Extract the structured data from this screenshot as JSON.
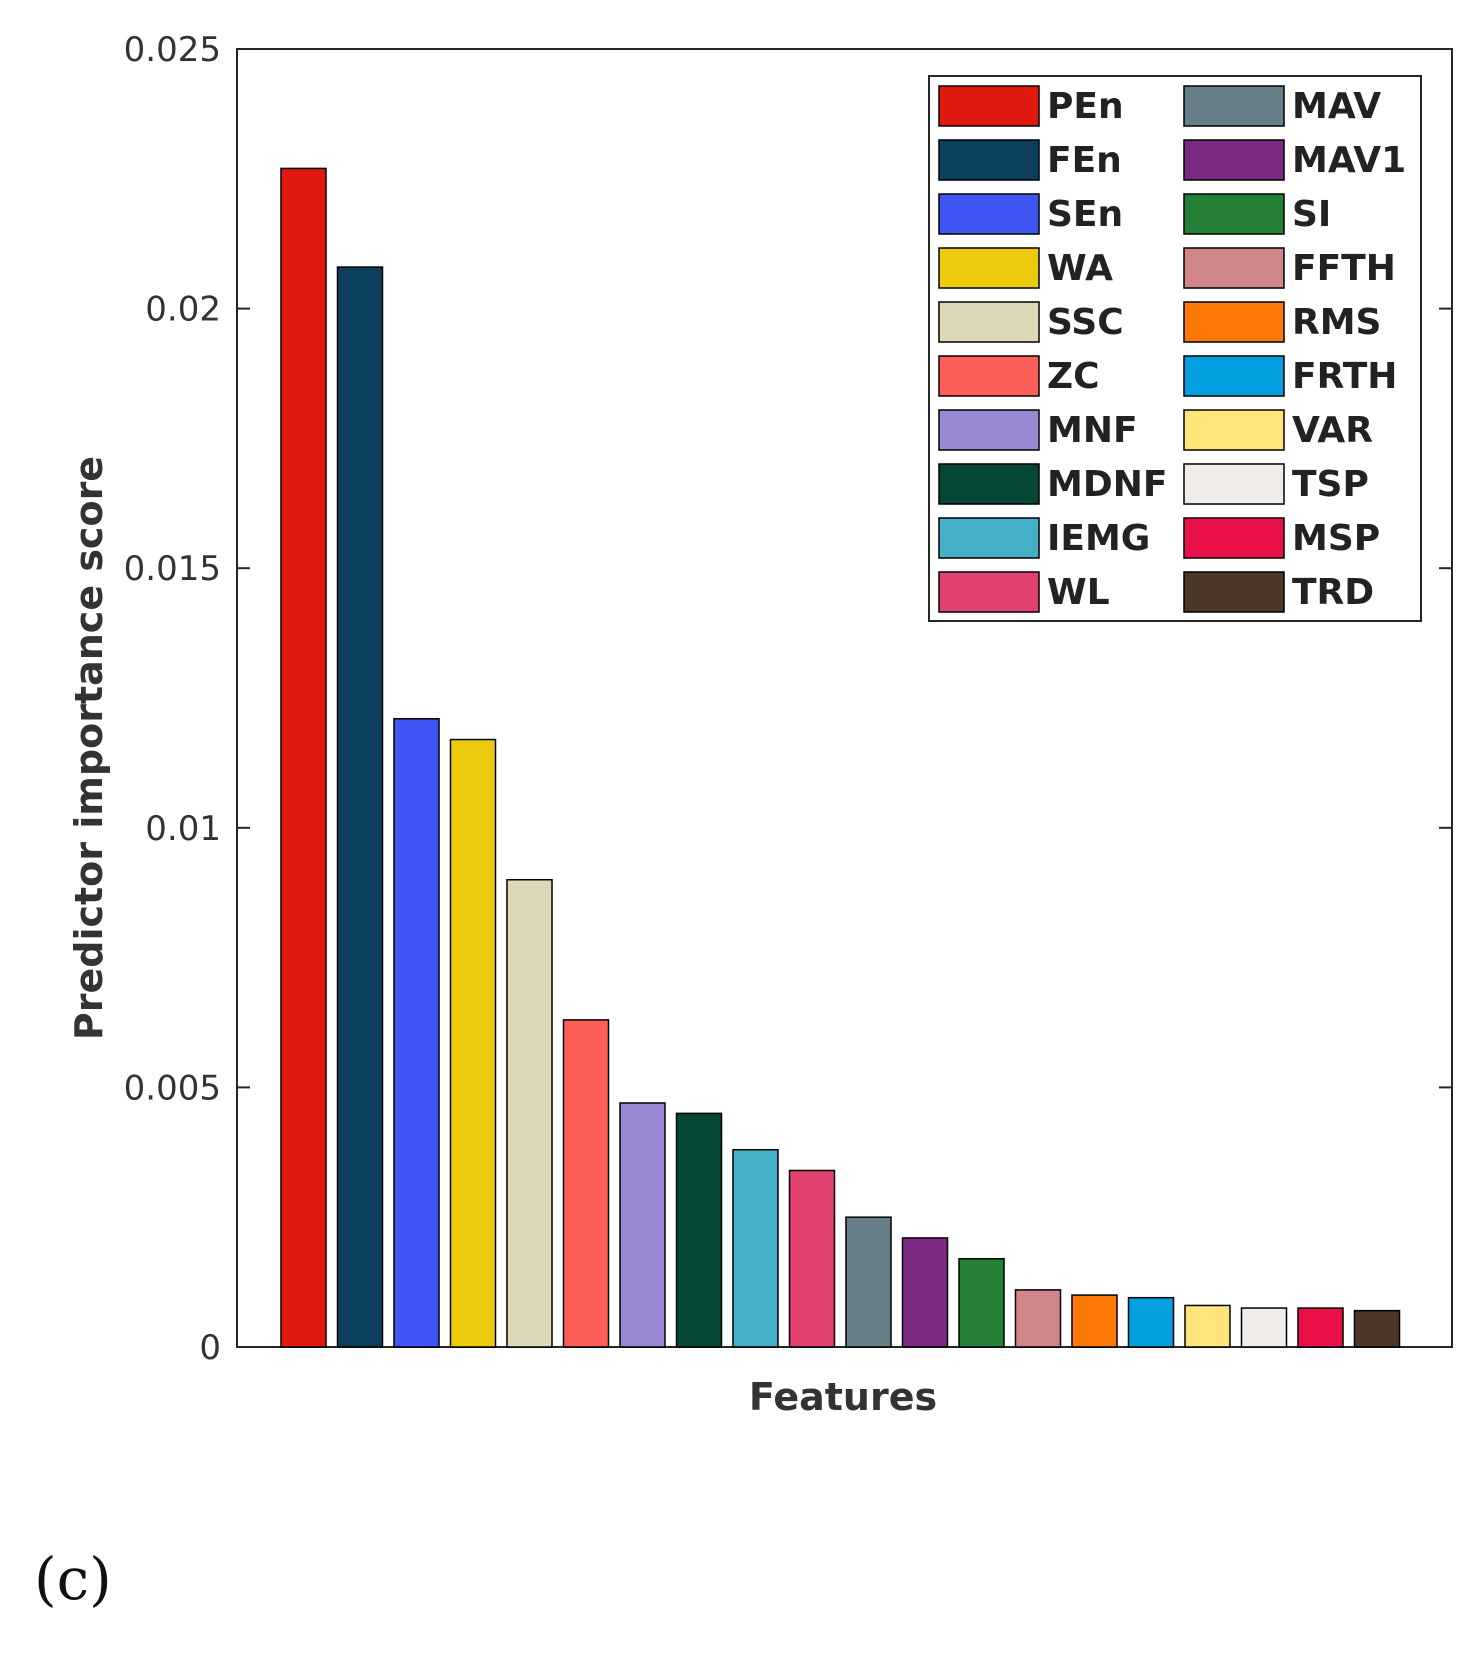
{
  "chart_data": {
    "type": "bar",
    "title": "",
    "xlabel": "Features",
    "ylabel": "Predictor importance score",
    "ylim": [
      0,
      0.025
    ],
    "yticks": [
      0,
      0.005,
      0.01,
      0.015,
      0.02,
      0.025
    ],
    "ytick_labels": [
      "0",
      "0.005",
      "0.01",
      "0.015",
      "0.02",
      "0.025"
    ],
    "grid": false,
    "legend_position": "top-right",
    "categories": [
      "PEn",
      "FEn",
      "SEn",
      "WA",
      "SSC",
      "ZC",
      "MNF",
      "MDNF",
      "IEMG",
      "WL",
      "MAV",
      "MAV1",
      "SI",
      "FFTH",
      "RMS",
      "FRTH",
      "VAR",
      "TSP",
      "MSP",
      "TRD"
    ],
    "values": [
      0.0227,
      0.0208,
      0.0121,
      0.0117,
      0.009,
      0.0063,
      0.0047,
      0.0045,
      0.0038,
      0.0034,
      0.0025,
      0.0021,
      0.0017,
      0.0011,
      0.001,
      0.00095,
      0.0008,
      0.00075,
      0.00075,
      0.0007
    ],
    "colors": [
      "#e0190f",
      "#0b3f5c",
      "#4056f4",
      "#eccb0c",
      "#ddd8b8",
      "#fd5e57",
      "#9b88d4",
      "#054636",
      "#46afc8",
      "#e0416d",
      "#687f8a",
      "#7c2982",
      "#248036",
      "#cf8589",
      "#fb7805",
      "#039fe0",
      "#fde57b",
      "#f0ece9",
      "#e9104a",
      "#4d3728"
    ]
  },
  "panel_label": "(c)"
}
